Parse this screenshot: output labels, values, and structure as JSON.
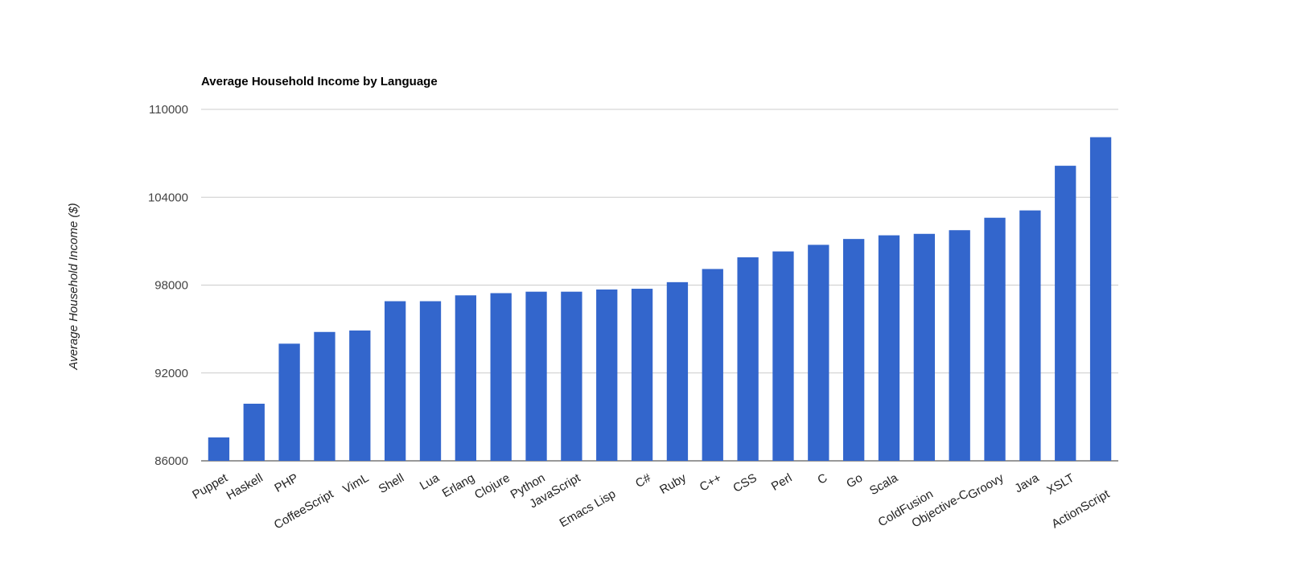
{
  "chart_data": {
    "type": "bar",
    "title": "Average Household Income by Language",
    "xlabel": "",
    "ylabel": "Average Household Income ($)",
    "ylim": [
      86000,
      110000
    ],
    "yticks": [
      "110000",
      "104000",
      "98000",
      "92000",
      "86000"
    ],
    "grid": true,
    "legend": "none",
    "color": "#3366cc",
    "categories": [
      "Puppet",
      "Haskell",
      "PHP",
      "CoffeeScript",
      "VimL",
      "Shell",
      "Lua",
      "Erlang",
      "Clojure",
      "Python",
      "JavaScript",
      "Emacs Lisp",
      "C#",
      "Ruby",
      "C++",
      "CSS",
      "Perl",
      "C",
      "Go",
      "Scala",
      "ColdFusion",
      "Objective-C",
      "Groovy",
      "Java",
      "XSLT",
      "ActionScript"
    ],
    "values": [
      87600,
      89900,
      94000,
      94800,
      94900,
      96900,
      96900,
      97300,
      97450,
      97550,
      97550,
      97700,
      97750,
      98200,
      99100,
      99900,
      100300,
      100750,
      101150,
      101400,
      101500,
      101750,
      102600,
      103100,
      106150,
      108100
    ]
  }
}
